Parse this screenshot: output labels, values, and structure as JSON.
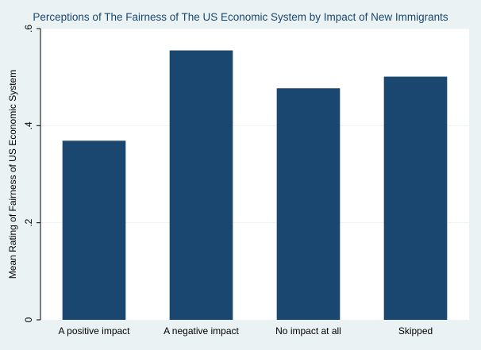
{
  "chart_data": {
    "type": "bar",
    "title": "Perceptions of The Fairness of The US Economic System by Impact of New Immigrants",
    "xlabel": "",
    "ylabel": "Mean Rating of Fairness of US Economic System",
    "categories": [
      "A positive impact",
      "A negative impact",
      "No impact at all",
      "Skipped"
    ],
    "values": [
      0.369,
      0.555,
      0.477,
      0.501
    ],
    "ylim": [
      0,
      0.6
    ],
    "yticks": [
      0,
      0.2,
      0.4,
      0.6
    ],
    "ytick_labels": [
      "0",
      ".2",
      ".4",
      ".6"
    ],
    "grid": true,
    "legend": "none",
    "colors": {
      "bar": "#1a476f",
      "plot_background": "#ffffff",
      "outer_background": "#eaf2f3",
      "grid": "#eaf2f3",
      "title": "#1a476f"
    }
  }
}
